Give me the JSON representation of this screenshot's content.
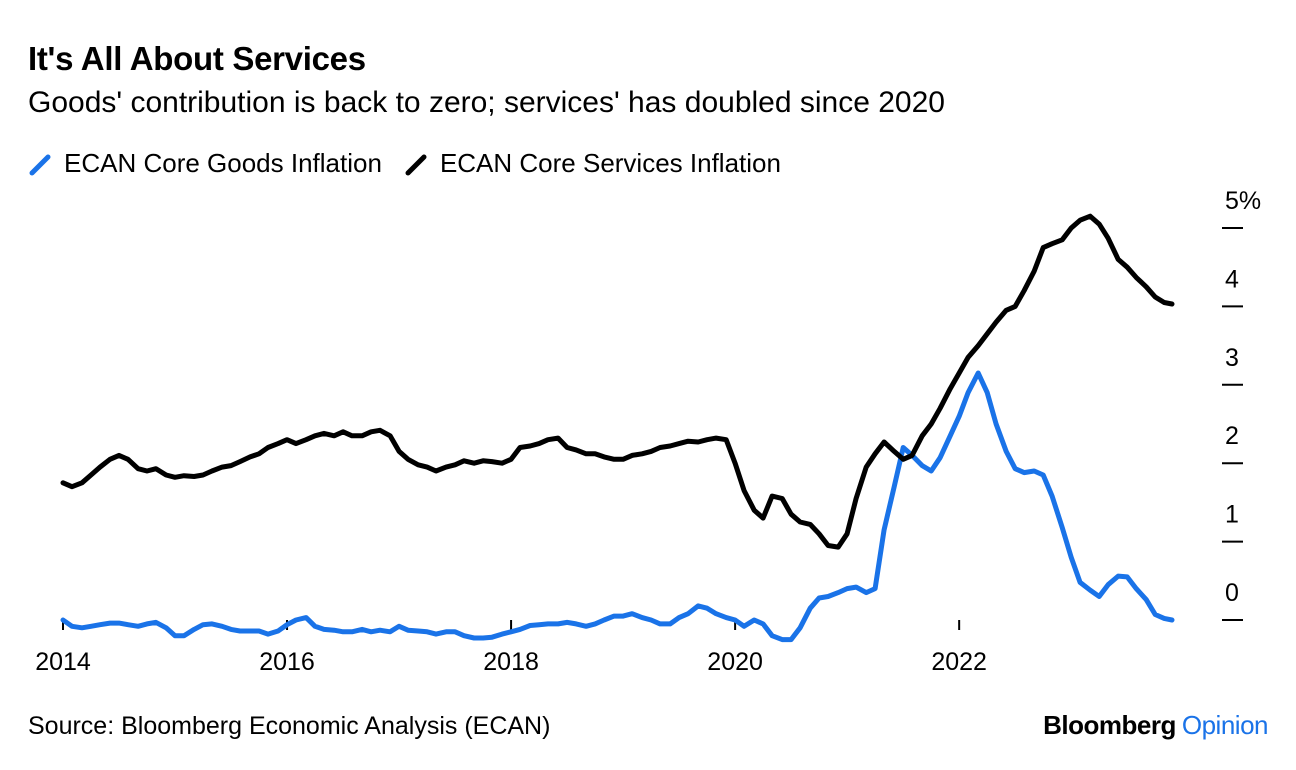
{
  "header": {
    "title": "It's All About Services",
    "subtitle": "Goods' contribution is back to zero; services' has doubled since 2020"
  },
  "footer": {
    "source": "Source: Bloomberg Economic Analysis (ECAN)",
    "brand_bloomberg": "Bloomberg",
    "brand_opinion": "Opinion",
    "brand_opinion_color": "#1a73e8"
  },
  "chart_data": {
    "type": "line",
    "title": "It's All About Services",
    "subtitle": "Goods' contribution is back to zero; services' has doubled since 2020",
    "xlabel": "",
    "ylabel": "",
    "xlim": [
      2014.0,
      2023.9
    ],
    "ylim": [
      0,
      5
    ],
    "y_axis_side": "right",
    "y_unit_suffix": "%",
    "x_ticks": [
      2014,
      2016,
      2018,
      2020,
      2022
    ],
    "x_tick_labels": [
      "2014",
      "2016",
      "2018",
      "2020",
      "2022"
    ],
    "y_ticks": [
      0,
      1,
      2,
      3,
      4,
      5
    ],
    "y_tick_labels": [
      "0",
      "1",
      "2",
      "3",
      "4",
      "5%"
    ],
    "grid": false,
    "legend_position": "top-left",
    "series": [
      {
        "name": "ECAN Core Goods Inflation",
        "color": "#1a73e8",
        "x": [
          2014.0,
          2014.08,
          2014.17,
          2014.25,
          2014.33,
          2014.42,
          2014.5,
          2014.58,
          2014.67,
          2014.75,
          2014.83,
          2014.92,
          2015.0,
          2015.08,
          2015.17,
          2015.25,
          2015.33,
          2015.42,
          2015.5,
          2015.58,
          2015.67,
          2015.75,
          2015.83,
          2015.92,
          2016.0,
          2016.08,
          2016.17,
          2016.25,
          2016.33,
          2016.42,
          2016.5,
          2016.58,
          2016.67,
          2016.75,
          2016.83,
          2016.92,
          2017.0,
          2017.08,
          2017.17,
          2017.25,
          2017.33,
          2017.42,
          2017.5,
          2017.58,
          2017.67,
          2017.75,
          2017.83,
          2017.92,
          2018.0,
          2018.08,
          2018.17,
          2018.25,
          2018.33,
          2018.42,
          2018.5,
          2018.58,
          2018.67,
          2018.75,
          2018.83,
          2018.92,
          2019.0,
          2019.08,
          2019.17,
          2019.25,
          2019.33,
          2019.42,
          2019.5,
          2019.58,
          2019.67,
          2019.75,
          2019.83,
          2019.92,
          2020.0,
          2020.08,
          2020.17,
          2020.25,
          2020.33,
          2020.42,
          2020.5,
          2020.58,
          2020.67,
          2020.75,
          2020.83,
          2020.92,
          2021.0,
          2021.08,
          2021.17,
          2021.25,
          2021.33,
          2021.42,
          2021.5,
          2021.58,
          2021.67,
          2021.75,
          2021.83,
          2021.92,
          2022.0,
          2022.08,
          2022.17,
          2022.25,
          2022.33,
          2022.42,
          2022.5,
          2022.58,
          2022.67,
          2022.75,
          2022.83,
          2022.92,
          2023.0,
          2023.08,
          2023.17,
          2023.25,
          2023.33,
          2023.42,
          2023.5,
          2023.58,
          2023.67,
          2023.75,
          2023.83,
          2023.9
        ],
        "values": [
          0.0,
          -0.08,
          -0.1,
          -0.08,
          -0.06,
          -0.04,
          -0.04,
          -0.06,
          -0.08,
          -0.05,
          -0.03,
          -0.1,
          -0.2,
          -0.2,
          -0.12,
          -0.06,
          -0.05,
          -0.08,
          -0.12,
          -0.14,
          -0.14,
          -0.14,
          -0.18,
          -0.14,
          -0.06,
          0.0,
          0.03,
          -0.08,
          -0.12,
          -0.13,
          -0.15,
          -0.15,
          -0.12,
          -0.15,
          -0.13,
          -0.15,
          -0.08,
          -0.13,
          -0.14,
          -0.15,
          -0.18,
          -0.15,
          -0.15,
          -0.2,
          -0.23,
          -0.23,
          -0.22,
          -0.18,
          -0.15,
          -0.12,
          -0.07,
          -0.06,
          -0.05,
          -0.05,
          -0.03,
          -0.05,
          -0.08,
          -0.05,
          0.0,
          0.05,
          0.05,
          0.08,
          0.03,
          0.0,
          -0.05,
          -0.05,
          0.03,
          0.08,
          0.18,
          0.15,
          0.08,
          0.03,
          0.0,
          -0.08,
          0.0,
          -0.05,
          -0.2,
          -0.25,
          -0.25,
          -0.1,
          0.15,
          0.28,
          0.3,
          0.35,
          0.4,
          0.42,
          0.35,
          0.4,
          1.15,
          1.7,
          2.2,
          2.1,
          1.97,
          1.9,
          2.07,
          2.35,
          2.6,
          2.9,
          3.15,
          2.9,
          2.5,
          2.15,
          1.93,
          1.88,
          1.9,
          1.85,
          1.58,
          1.18,
          0.8,
          0.48,
          0.38,
          0.3,
          0.45,
          0.56,
          0.55,
          0.4,
          0.26,
          0.07,
          0.02,
          0.0
        ]
      },
      {
        "name": "ECAN Core Services Inflation",
        "color": "#000000",
        "x": [
          2014.0,
          2014.08,
          2014.17,
          2014.25,
          2014.33,
          2014.42,
          2014.5,
          2014.58,
          2014.67,
          2014.75,
          2014.83,
          2014.92,
          2015.0,
          2015.08,
          2015.17,
          2015.25,
          2015.33,
          2015.42,
          2015.5,
          2015.58,
          2015.67,
          2015.75,
          2015.83,
          2015.92,
          2016.0,
          2016.08,
          2016.17,
          2016.25,
          2016.33,
          2016.42,
          2016.5,
          2016.58,
          2016.67,
          2016.75,
          2016.83,
          2016.92,
          2017.0,
          2017.08,
          2017.17,
          2017.25,
          2017.33,
          2017.42,
          2017.5,
          2017.58,
          2017.67,
          2017.75,
          2017.83,
          2017.92,
          2018.0,
          2018.08,
          2018.17,
          2018.25,
          2018.33,
          2018.42,
          2018.5,
          2018.58,
          2018.67,
          2018.75,
          2018.83,
          2018.92,
          2019.0,
          2019.08,
          2019.17,
          2019.25,
          2019.33,
          2019.42,
          2019.5,
          2019.58,
          2019.67,
          2019.75,
          2019.83,
          2019.92,
          2020.0,
          2020.08,
          2020.17,
          2020.25,
          2020.33,
          2020.42,
          2020.5,
          2020.58,
          2020.67,
          2020.75,
          2020.83,
          2020.92,
          2021.0,
          2021.08,
          2021.17,
          2021.25,
          2021.33,
          2021.42,
          2021.5,
          2021.58,
          2021.67,
          2021.75,
          2021.83,
          2021.92,
          2022.0,
          2022.08,
          2022.17,
          2022.25,
          2022.33,
          2022.42,
          2022.5,
          2022.58,
          2022.67,
          2022.75,
          2022.83,
          2022.92,
          2023.0,
          2023.08,
          2023.17,
          2023.25,
          2023.33,
          2023.42,
          2023.5,
          2023.58,
          2023.67,
          2023.75,
          2023.83,
          2023.9
        ],
        "values": [
          1.75,
          1.7,
          1.75,
          1.85,
          1.95,
          2.05,
          2.1,
          2.05,
          1.93,
          1.9,
          1.93,
          1.85,
          1.82,
          1.84,
          1.83,
          1.85,
          1.9,
          1.95,
          1.97,
          2.02,
          2.08,
          2.12,
          2.2,
          2.25,
          2.3,
          2.25,
          2.3,
          2.35,
          2.38,
          2.35,
          2.4,
          2.35,
          2.35,
          2.4,
          2.42,
          2.35,
          2.15,
          2.05,
          1.98,
          1.95,
          1.9,
          1.95,
          1.98,
          2.03,
          2.0,
          2.03,
          2.02,
          2.0,
          2.05,
          2.2,
          2.22,
          2.25,
          2.3,
          2.32,
          2.2,
          2.17,
          2.12,
          2.12,
          2.08,
          2.05,
          2.05,
          2.1,
          2.12,
          2.15,
          2.2,
          2.22,
          2.25,
          2.28,
          2.27,
          2.3,
          2.32,
          2.3,
          2.0,
          1.65,
          1.4,
          1.3,
          1.58,
          1.55,
          1.35,
          1.25,
          1.22,
          1.1,
          0.95,
          0.93,
          1.1,
          1.55,
          1.95,
          2.12,
          2.27,
          2.15,
          2.05,
          2.1,
          2.35,
          2.5,
          2.7,
          2.95,
          3.15,
          3.35,
          3.5,
          3.65,
          3.8,
          3.95,
          4.0,
          4.2,
          4.45,
          4.75,
          4.8,
          4.85,
          5.0,
          5.1,
          5.15,
          5.05,
          4.87,
          4.6,
          4.5,
          4.37,
          4.25,
          4.12,
          4.05,
          4.03
        ]
      }
    ]
  }
}
